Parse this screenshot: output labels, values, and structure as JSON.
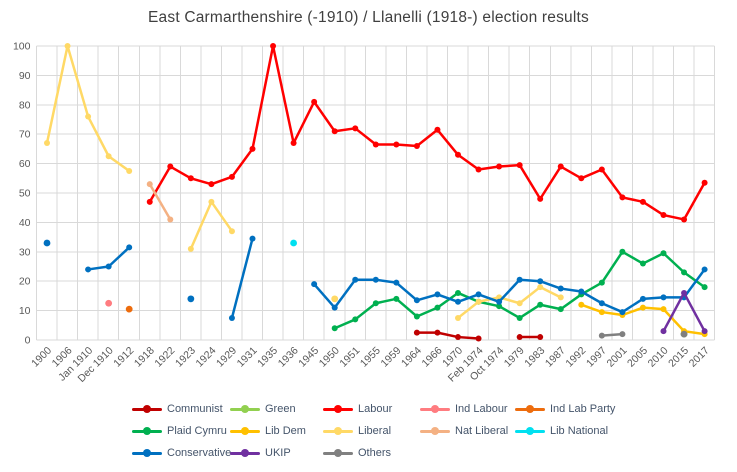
{
  "chart_data": {
    "type": "line",
    "title": "East Carmarthenshire (-1910) / Llanelli (1918-) election results",
    "xlabel": "",
    "ylabel": "",
    "ylim": [
      0,
      100
    ],
    "y_ticks": [
      0,
      10,
      20,
      30,
      40,
      50,
      60,
      70,
      80,
      90,
      100
    ],
    "grid": true,
    "legend_position": "bottom",
    "categories": [
      "1900",
      "1906",
      "Jan 1910",
      "Dec 1910",
      "1912",
      "1918",
      "1922",
      "1923",
      "1924",
      "1929",
      "1931",
      "1935",
      "1936",
      "1945",
      "1950",
      "1951",
      "1955",
      "1959",
      "1964",
      "1966",
      "1970",
      "Feb 1974",
      "Oct 1974",
      "1979",
      "1983",
      "1987",
      "1992",
      "1997",
      "2001",
      "2005",
      "2010",
      "2015",
      "2017"
    ],
    "series": [
      {
        "name": "Communist",
        "color": "#C00000",
        "values": [
          null,
          null,
          null,
          null,
          null,
          null,
          null,
          null,
          null,
          null,
          null,
          null,
          null,
          null,
          null,
          null,
          null,
          null,
          2.5,
          2.5,
          1,
          0.5,
          null,
          1,
          1,
          null,
          null,
          null,
          null,
          null,
          null,
          null,
          null
        ]
      },
      {
        "name": "Green",
        "color": "#92D050",
        "values": [
          null,
          null,
          null,
          null,
          null,
          null,
          null,
          null,
          null,
          null,
          null,
          null,
          null,
          null,
          null,
          null,
          null,
          null,
          null,
          null,
          null,
          null,
          null,
          null,
          null,
          null,
          null,
          null,
          null,
          null,
          null,
          2,
          null
        ]
      },
      {
        "name": "Labour",
        "color": "#FF0000",
        "values": [
          null,
          null,
          null,
          null,
          null,
          47,
          59,
          55,
          53,
          55.5,
          65,
          100,
          67,
          81,
          71,
          72,
          66.5,
          66.5,
          66,
          71.5,
          63,
          58,
          59,
          59.5,
          48,
          59,
          55,
          58,
          48.5,
          47,
          42.5,
          41,
          53.5
        ]
      },
      {
        "name": "Ind Labour",
        "color": "#FF7C80",
        "values": [
          null,
          null,
          null,
          12.5,
          null,
          null,
          null,
          null,
          null,
          null,
          null,
          null,
          null,
          null,
          null,
          null,
          null,
          null,
          null,
          null,
          null,
          null,
          null,
          null,
          null,
          null,
          null,
          null,
          null,
          null,
          null,
          null,
          null
        ]
      },
      {
        "name": "Ind Lab Party",
        "color": "#ED6C0D",
        "values": [
          null,
          null,
          null,
          null,
          10.5,
          null,
          null,
          null,
          null,
          null,
          null,
          null,
          null,
          null,
          null,
          null,
          null,
          null,
          null,
          null,
          null,
          null,
          null,
          null,
          null,
          null,
          null,
          null,
          null,
          null,
          null,
          null,
          null
        ]
      },
      {
        "name": "Plaid Cymru",
        "color": "#00B050",
        "values": [
          null,
          null,
          null,
          null,
          null,
          null,
          null,
          null,
          null,
          null,
          null,
          null,
          null,
          null,
          4,
          7,
          12.5,
          14,
          8,
          11,
          16,
          13,
          11.5,
          7.5,
          12,
          10.5,
          15.5,
          19.5,
          30,
          26,
          29.5,
          23,
          18
        ]
      },
      {
        "name": "Lib Dem",
        "color": "#FFC000",
        "values": [
          null,
          null,
          null,
          null,
          null,
          null,
          null,
          null,
          null,
          null,
          null,
          null,
          null,
          null,
          null,
          null,
          null,
          null,
          null,
          null,
          null,
          null,
          null,
          null,
          null,
          null,
          12,
          9.5,
          8.5,
          11,
          10.5,
          3,
          2
        ]
      },
      {
        "name": "Liberal",
        "color": "#FFD966",
        "values": [
          67,
          100,
          76,
          62.5,
          57.5,
          null,
          null,
          31,
          47,
          37,
          null,
          null,
          null,
          null,
          14,
          null,
          null,
          null,
          null,
          null,
          7.5,
          13,
          14.5,
          12.5,
          18,
          14.5,
          null,
          null,
          null,
          null,
          null,
          null,
          null
        ]
      },
      {
        "name": "Nat Liberal",
        "color": "#F4B183",
        "values": [
          null,
          null,
          null,
          null,
          null,
          53,
          41,
          null,
          null,
          null,
          null,
          null,
          null,
          null,
          null,
          null,
          null,
          null,
          null,
          null,
          null,
          null,
          null,
          null,
          null,
          null,
          null,
          null,
          null,
          null,
          null,
          null,
          null
        ]
      },
      {
        "name": "Lib National",
        "color": "#00E0F0",
        "values": [
          null,
          null,
          null,
          null,
          null,
          null,
          null,
          null,
          null,
          null,
          null,
          null,
          33,
          null,
          null,
          null,
          null,
          null,
          null,
          null,
          null,
          null,
          null,
          null,
          null,
          null,
          null,
          null,
          null,
          null,
          null,
          null,
          null
        ]
      },
      {
        "name": "Conservative",
        "color": "#0070C0",
        "values": [
          33,
          null,
          24,
          25,
          31.5,
          null,
          null,
          14,
          null,
          7.5,
          34.5,
          null,
          null,
          19,
          11,
          20.5,
          20.5,
          19.5,
          13.5,
          15.5,
          13,
          15.5,
          13,
          20.5,
          20,
          17.5,
          16.5,
          12.5,
          9.5,
          14,
          14.5,
          14.5,
          24
        ]
      },
      {
        "name": "UKIP",
        "color": "#7030A0",
        "values": [
          null,
          null,
          null,
          null,
          null,
          null,
          null,
          null,
          null,
          null,
          null,
          null,
          null,
          null,
          null,
          null,
          null,
          null,
          null,
          null,
          null,
          null,
          null,
          null,
          null,
          null,
          null,
          null,
          null,
          null,
          3,
          16,
          3
        ]
      },
      {
        "name": "Others",
        "color": "#808080",
        "values": [
          null,
          null,
          null,
          null,
          null,
          null,
          null,
          null,
          null,
          null,
          null,
          null,
          null,
          null,
          null,
          null,
          null,
          null,
          null,
          null,
          null,
          null,
          null,
          null,
          null,
          null,
          null,
          1.5,
          2,
          null,
          null,
          2,
          null
        ]
      }
    ]
  },
  "legend": {
    "rows": [
      [
        "Communist",
        "Green",
        "Labour",
        "Ind Labour",
        "Ind Lab Party"
      ],
      [
        "Plaid Cymru",
        "Lib Dem",
        "Liberal",
        "Nat Liberal",
        "Lib National"
      ],
      [
        "Conservative",
        "UKIP",
        "Others"
      ]
    ]
  },
  "style": {
    "grid_color": "#D9D9D9",
    "axis_text_color": "#595959",
    "legend_text_color": "#44546A"
  }
}
